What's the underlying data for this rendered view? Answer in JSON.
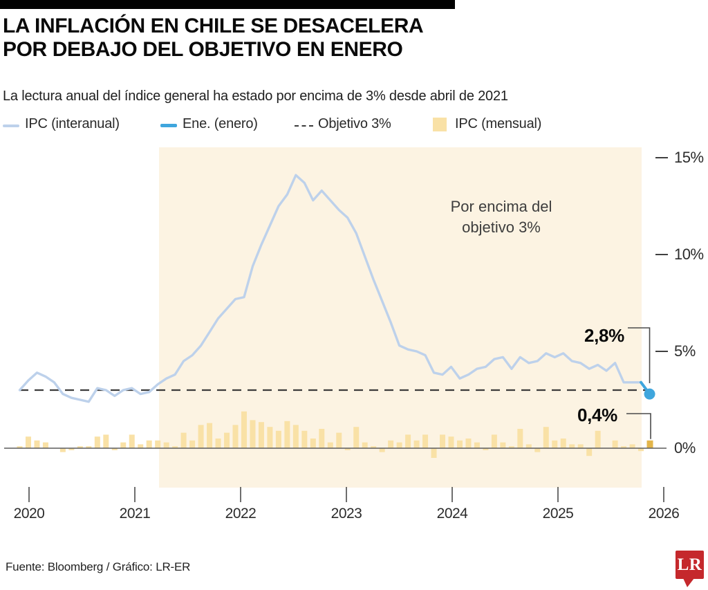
{
  "header": {
    "title_line1": "LA INFLACIÓN EN CHILE SE DESACELERA",
    "title_line2": "POR DEBAJO DEL OBJETIVO EN ENERO",
    "subtitle": "La lectura anual del índice general ha estado por encima de 3% desde abril de 2021"
  },
  "legend": {
    "items": [
      {
        "label": "IPC (interanual)",
        "type": "line",
        "color": "#BDD1EB"
      },
      {
        "label": "Ene. (enero)",
        "type": "line",
        "color": "#3FA6DD"
      },
      {
        "label": "Objetivo 3%",
        "type": "dashed-line",
        "color": "#3B3B3B"
      },
      {
        "label": "IPC (mensual)",
        "type": "square",
        "color": "#F9E1A6"
      }
    ]
  },
  "chart_data": {
    "type": "line",
    "x_start": "2019-12",
    "x_end": "2026-01",
    "x_frequency": "monthly",
    "x_tick_labels": [
      "2020",
      "2021",
      "2022",
      "2023",
      "2024",
      "2025",
      "2026"
    ],
    "y_tick_labels": [
      "15%",
      "10%",
      "5%",
      "0%"
    ],
    "y_tick_values": [
      15,
      10,
      5,
      0
    ],
    "ylim": [
      -1.5,
      15.8
    ],
    "grid": false,
    "legend_position": "top",
    "target_line": {
      "value": 3,
      "label": "Objetivo 3%",
      "style": "dashed"
    },
    "shaded_region": {
      "from": "2021-04",
      "to": "2025-11",
      "color": "#FCF3E2",
      "label_line1": "Por encima del",
      "label_line2": "objetivo 3%"
    },
    "series": [
      {
        "name": "IPC (interanual)",
        "type": "line",
        "unit": "% interanual",
        "color": "#BDD1EB",
        "values": [
          3.0,
          3.5,
          3.9,
          3.7,
          3.4,
          2.8,
          2.6,
          2.5,
          2.4,
          3.1,
          3.0,
          2.7,
          3.0,
          3.1,
          2.8,
          2.9,
          3.3,
          3.6,
          3.8,
          4.5,
          4.8,
          5.3,
          6.0,
          6.7,
          7.2,
          7.7,
          7.8,
          9.4,
          10.5,
          11.5,
          12.5,
          13.1,
          14.1,
          13.7,
          12.8,
          13.3,
          12.8,
          12.3,
          11.9,
          11.1,
          9.9,
          8.7,
          7.6,
          6.5,
          5.3,
          5.1,
          5.0,
          4.8,
          3.9,
          3.8,
          4.2,
          3.6,
          3.8,
          4.1,
          4.2,
          4.6,
          4.7,
          4.1,
          4.7,
          4.4,
          4.5,
          4.9,
          4.7,
          4.9,
          4.5,
          4.4,
          4.1,
          4.3,
          4.0,
          4.4,
          3.4,
          3.4,
          3.4,
          2.8
        ]
      },
      {
        "name": "IPC (mensual)",
        "type": "bar",
        "unit": "% mensual",
        "color": "#F9E1A6",
        "values": [
          0.1,
          0.6,
          0.4,
          0.3,
          0.0,
          -0.2,
          -0.1,
          0.1,
          0.1,
          0.6,
          0.7,
          -0.1,
          0.3,
          0.7,
          0.2,
          0.4,
          0.4,
          0.3,
          0.1,
          0.8,
          0.4,
          1.2,
          1.3,
          0.5,
          0.8,
          1.2,
          1.9,
          1.45,
          1.35,
          1.1,
          0.9,
          1.4,
          1.2,
          0.9,
          0.5,
          1.0,
          0.3,
          0.8,
          -0.1,
          1.1,
          0.3,
          0.1,
          -0.2,
          0.4,
          0.3,
          0.7,
          0.4,
          0.7,
          -0.5,
          0.7,
          0.6,
          0.4,
          0.5,
          0.3,
          -0.1,
          0.7,
          0.3,
          0.1,
          1.0,
          0.2,
          -0.2,
          1.1,
          0.4,
          0.5,
          0.2,
          0.2,
          -0.4,
          0.9,
          0.0,
          0.4,
          0.1,
          0.2,
          -0.15,
          0.4
        ]
      }
    ],
    "highlight": {
      "name": "Ene. (enero)",
      "month": "2026-01",
      "color": "#3FA6DD",
      "bar_color": "#E3B54A",
      "annual_value": 2.8,
      "monthly_value": 0.4
    }
  },
  "annotations": {
    "annual": {
      "text": "2,8%"
    },
    "monthly": {
      "text": "0,4%"
    },
    "above_target_line1": "Por encima del",
    "above_target_line2": "objetivo 3%"
  },
  "footer": {
    "source": "Fuente: Bloomberg / Gráfico: LR-ER",
    "logo_text": "LR"
  },
  "colors": {
    "line": "#BDD1EB",
    "highlight_blue": "#3FA6DD",
    "bar": "#F9E1A6",
    "bar_highlight": "#E3B54A",
    "shade": "#FCF3E2",
    "dashed": "#3B3B3B",
    "axis": "#5B5B5B",
    "logo_red": "#C5282C"
  }
}
